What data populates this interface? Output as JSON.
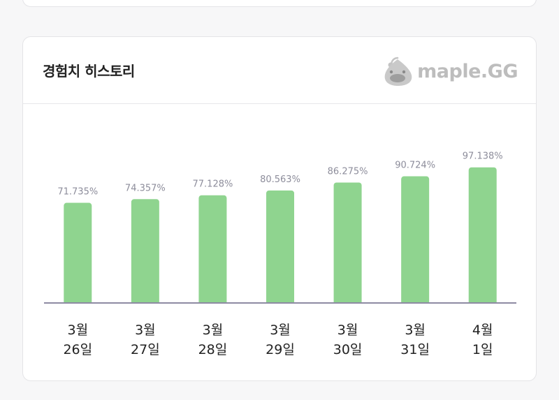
{
  "card": {
    "title": "경험치 히스토리",
    "logo_text": "maple.GG",
    "logo_icon": "slime-mascot-icon"
  },
  "colors": {
    "bar": "#8fd48f",
    "axis": "#8e8aa3",
    "data_label": "#8d8d9b",
    "tick_label": "#222222"
  },
  "chart_data": {
    "type": "bar",
    "title": "",
    "xlabel": "",
    "ylabel": "",
    "categories": [
      "3월\n26일",
      "3월\n27일",
      "3월\n28일",
      "3월\n29일",
      "3월\n30일",
      "3월\n31일",
      "4월\n1일"
    ],
    "category_lines": [
      [
        "3월",
        "26일"
      ],
      [
        "3월",
        "27일"
      ],
      [
        "3월",
        "28일"
      ],
      [
        "3월",
        "29일"
      ],
      [
        "3월",
        "30일"
      ],
      [
        "3월",
        "31일"
      ],
      [
        "4월",
        "1일"
      ]
    ],
    "values": [
      71.735,
      74.357,
      77.128,
      80.563,
      86.275,
      90.724,
      97.138
    ],
    "data_labels": [
      "71.735%",
      "74.357%",
      "77.128%",
      "80.563%",
      "86.275%",
      "90.724%",
      "97.138%"
    ],
    "ylim": [
      0,
      100
    ],
    "grid": false,
    "legend": "none"
  }
}
